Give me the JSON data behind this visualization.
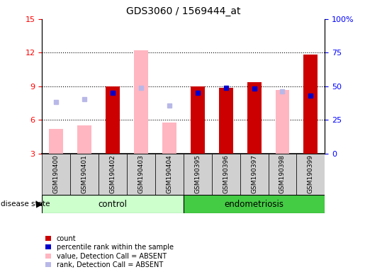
{
  "title": "GDS3060 / 1569444_at",
  "samples": [
    "GSM190400",
    "GSM190401",
    "GSM190402",
    "GSM190403",
    "GSM190404",
    "GSM190395",
    "GSM190396",
    "GSM190397",
    "GSM190398",
    "GSM190399"
  ],
  "ylim_left": [
    3,
    15
  ],
  "ylim_right": [
    0,
    100
  ],
  "yticks_left": [
    3,
    6,
    9,
    12,
    15
  ],
  "yticks_right": [
    0,
    25,
    50,
    75,
    100
  ],
  "ytick_labels_right": [
    "0",
    "25",
    "50",
    "75",
    "100%"
  ],
  "groups": {
    "control": "control",
    "endometriosis": "endometriosis"
  },
  "bar_color_red": "#cc0000",
  "bar_color_blue": "#0000cc",
  "bar_color_pink": "#ffb6c1",
  "bar_color_lavender": "#b8b8e8",
  "group_color_control": "#ccffcc",
  "group_color_endo": "#44cc44",
  "tick_bg_color": "#d0d0d0",
  "data": {
    "GSM190400": {
      "value_absent": 5.2,
      "rank_absent": 7.6,
      "value": null,
      "rank": null
    },
    "GSM190401": {
      "value_absent": 5.5,
      "rank_absent": 7.85,
      "value": null,
      "rank": null
    },
    "GSM190402": {
      "value": 9.0,
      "rank": 8.4,
      "value_absent": null,
      "rank_absent": null
    },
    "GSM190403": {
      "value_absent": 12.2,
      "rank_absent": 8.85,
      "value": null,
      "rank": null
    },
    "GSM190404": {
      "value_absent": 5.8,
      "rank_absent": 7.3,
      "value": null,
      "rank": null
    },
    "GSM190395": {
      "value": 9.0,
      "rank": 8.45,
      "value_absent": null,
      "rank_absent": null
    },
    "GSM190396": {
      "value": 8.85,
      "rank": 8.85,
      "value_absent": null,
      "rank_absent": null
    },
    "GSM190397": {
      "value": 9.4,
      "rank": 8.8,
      "value_absent": null,
      "rank_absent": null
    },
    "GSM190398": {
      "value_absent": 8.7,
      "rank_absent": 8.55,
      "value": null,
      "rank": null
    },
    "GSM190399": {
      "value": 11.85,
      "rank": 8.2,
      "value_absent": null,
      "rank_absent": null
    }
  },
  "legend_items": [
    {
      "label": "count",
      "color": "#cc0000"
    },
    {
      "label": "percentile rank within the sample",
      "color": "#0000cc"
    },
    {
      "label": "value, Detection Call = ABSENT",
      "color": "#ffb6c1"
    },
    {
      "label": "rank, Detection Call = ABSENT",
      "color": "#b8b8e8"
    }
  ],
  "disease_state_label": "disease state"
}
